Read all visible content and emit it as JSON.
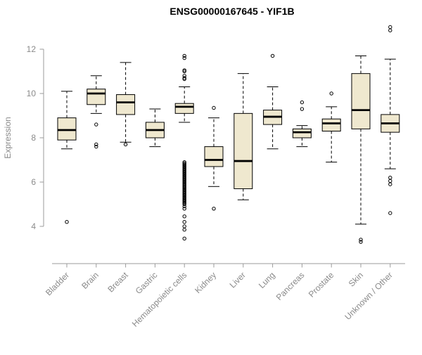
{
  "chart_data": {
    "type": "boxplot",
    "title": "ENSG00000167645 - YIF1B",
    "ylabel": "Expression",
    "xlabel": "",
    "yticks": [
      4,
      6,
      8,
      10,
      12
    ],
    "ylim": [
      3.0,
      13.2
    ],
    "grid": false,
    "legend": "none",
    "categories": [
      "Bladder",
      "Brain",
      "Breast",
      "Gastric",
      "Hematopoietic cells",
      "Kidney",
      "Liver",
      "Lung",
      "Pancreas",
      "Prostate",
      "Skin",
      "Unknown / Other"
    ],
    "boxes": [
      {
        "category": "Bladder",
        "whisker_low": 7.5,
        "q1": 7.9,
        "median": 8.35,
        "q3": 8.9,
        "whisker_high": 10.1,
        "outliers": [
          4.2
        ]
      },
      {
        "category": "Brain",
        "whisker_low": 9.1,
        "q1": 9.5,
        "median": 10.0,
        "q3": 10.2,
        "whisker_high": 10.8,
        "outliers": [
          8.6,
          7.7,
          7.6
        ]
      },
      {
        "category": "Breast",
        "whisker_low": 7.8,
        "q1": 9.05,
        "median": 9.6,
        "q3": 9.95,
        "whisker_high": 11.4,
        "outliers": [
          7.7
        ]
      },
      {
        "category": "Gastric",
        "whisker_low": 7.6,
        "q1": 8.0,
        "median": 8.35,
        "q3": 8.7,
        "whisker_high": 9.3,
        "outliers": []
      },
      {
        "category": "Hematopoietic cells",
        "whisker_low": 8.7,
        "q1": 9.1,
        "median": 9.4,
        "q3": 9.55,
        "whisker_high": 10.3,
        "outliers": [
          11.7,
          11.6,
          11.05,
          11.0,
          10.8,
          10.7,
          10.65,
          6.9,
          6.85,
          6.8,
          6.75,
          6.7,
          6.65,
          6.6,
          6.55,
          6.5,
          6.45,
          6.4,
          6.35,
          6.3,
          6.25,
          6.2,
          6.15,
          6.1,
          6.05,
          6.0,
          5.95,
          5.9,
          5.85,
          5.8,
          5.75,
          5.7,
          5.65,
          5.6,
          5.55,
          5.5,
          5.45,
          5.4,
          5.35,
          5.3,
          5.25,
          5.2,
          5.15,
          5.1,
          5.05,
          5.0,
          4.9,
          4.8,
          4.45,
          4.2,
          4.0,
          3.85,
          3.45
        ]
      },
      {
        "category": "Kidney",
        "whisker_low": 5.8,
        "q1": 6.7,
        "median": 7.0,
        "q3": 7.6,
        "whisker_high": 8.9,
        "outliers": [
          9.35,
          4.8
        ]
      },
      {
        "category": "Liver",
        "whisker_low": 5.2,
        "q1": 5.7,
        "median": 6.95,
        "q3": 9.1,
        "whisker_high": 10.9,
        "outliers": []
      },
      {
        "category": "Lung",
        "whisker_low": 7.5,
        "q1": 8.6,
        "median": 8.95,
        "q3": 9.25,
        "whisker_high": 10.3,
        "outliers": [
          11.7
        ]
      },
      {
        "category": "Pancreas",
        "whisker_low": 7.6,
        "q1": 8.0,
        "median": 8.25,
        "q3": 8.4,
        "whisker_high": 8.55,
        "outliers": [
          9.6,
          9.3
        ]
      },
      {
        "category": "Prostate",
        "whisker_low": 6.9,
        "q1": 8.3,
        "median": 8.65,
        "q3": 8.85,
        "whisker_high": 9.4,
        "outliers": [
          10.0
        ]
      },
      {
        "category": "Skin",
        "whisker_low": 4.1,
        "q1": 8.4,
        "median": 9.25,
        "q3": 10.9,
        "whisker_high": 11.7,
        "outliers": [
          3.4,
          3.3
        ]
      },
      {
        "category": "Unknown / Other",
        "whisker_low": 6.6,
        "q1": 8.25,
        "median": 8.65,
        "q3": 9.05,
        "whisker_high": 11.55,
        "outliers": [
          13.0,
          12.85,
          6.2,
          6.05,
          5.9,
          4.6
        ]
      }
    ],
    "style": {
      "box_fill": "#efe8cf",
      "box_stroke": "#000000",
      "axis_color": "#9b9b9b",
      "label_color": "#8a8a8a",
      "title_color": "#000000"
    }
  }
}
